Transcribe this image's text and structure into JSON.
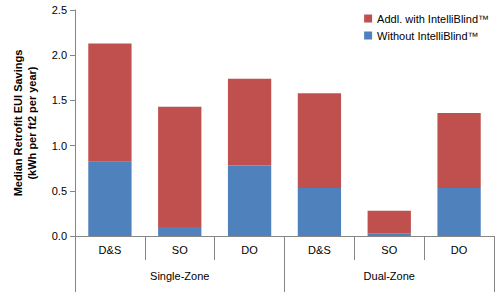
{
  "chart_data": {
    "type": "bar",
    "ylabel": "Median Retrofit EUI Savings\n(kWh per ft2 per year)",
    "categories": [
      "D&S",
      "SO",
      "DO",
      "D&S",
      "SO",
      "DO"
    ],
    "groups": [
      "Single-Zone",
      "Dual-Zone"
    ],
    "series": [
      {
        "name": "Without IntelliBlind™",
        "color": "#4f81bd",
        "values": [
          0.82,
          0.1,
          0.78,
          0.53,
          0.03,
          0.53
        ]
      },
      {
        "name": "Addl. with IntelliBlind™",
        "color": "#c0504d",
        "values": [
          1.31,
          1.33,
          0.96,
          1.05,
          0.25,
          0.83
        ]
      }
    ],
    "stacked": true,
    "ylim": [
      0,
      2.5
    ],
    "yticks": [
      {
        "value": 0,
        "label": "0.0"
      },
      0.5,
      {
        "value": 1,
        "label": "1.0"
      },
      1.5,
      {
        "value": 2,
        "label": "2.0"
      },
      2.5
    ],
    "grid": false,
    "legend": "upper right"
  }
}
